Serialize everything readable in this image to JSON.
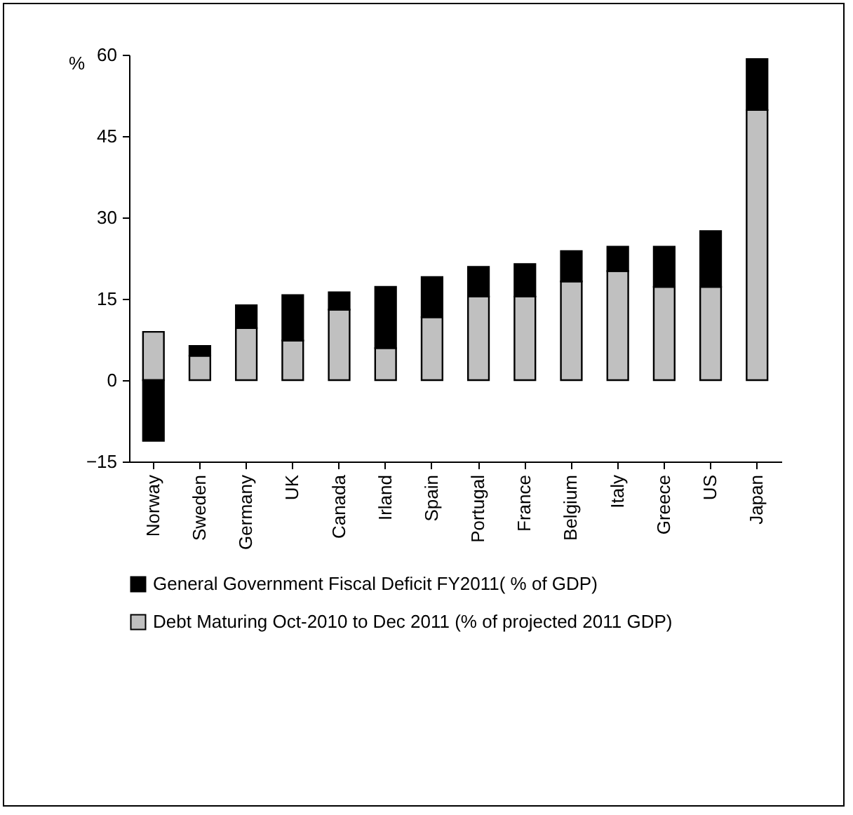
{
  "chart_data": {
    "type": "bar",
    "stacked": true,
    "ylabel": "%",
    "categories": [
      "Norway",
      "Sweden",
      "Germany",
      "UK",
      "Canada",
      "Irland",
      "Spain",
      "Portugal",
      "France",
      "Belgium",
      "Italy",
      "Greece",
      "US",
      "Japan"
    ],
    "series": [
      {
        "name": "Debt Maturing Oct-2010 to Dec 2011 (% of projected 2011 GDP)",
        "color": "#c0c0c0",
        "values": [
          8.9,
          4.5,
          9.6,
          7.3,
          13.0,
          5.9,
          11.6,
          15.4,
          15.4,
          18.2,
          20.1,
          17.2,
          17.2,
          49.8
        ]
      },
      {
        "name": "General  Government Fiscal Deficit FY2011( % of GDP)",
        "color": "#000000",
        "values": [
          -11.2,
          1.8,
          4.2,
          8.4,
          3.2,
          11.3,
          7.4,
          5.5,
          6.0,
          5.6,
          4.5,
          7.4,
          10.3,
          9.4
        ]
      }
    ],
    "ylim": [
      -15,
      60
    ],
    "yticks": [
      -15,
      0,
      15,
      30,
      45,
      60
    ],
    "grid": false,
    "legend": "bottom"
  }
}
